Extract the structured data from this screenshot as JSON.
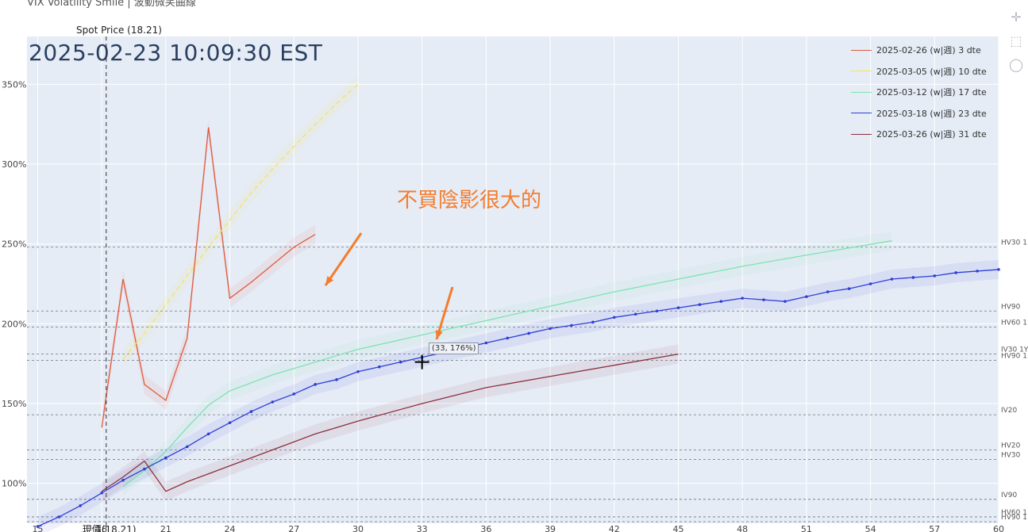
{
  "header": {
    "title": "VIX Volatility Smile | 波動微笑曲線"
  },
  "timestamp": "2025-02-23 10:09:30 EST",
  "spot": {
    "label": "Spot Price (18.21)",
    "bottom_label": "現價(18.21)",
    "value": 18.21
  },
  "annotation": {
    "text": "不買陰影很大的"
  },
  "tooltip": {
    "text": "(33, 176%)"
  },
  "modebar": {
    "icons": [
      "pan-icon",
      "box-select-icon",
      "comment-icon"
    ]
  },
  "colors": {
    "background": "#e5ecf6",
    "s1": "#e2583e",
    "s2": "#f8e35a",
    "s3": "#7ee2b0",
    "s4": "#2e3fd6",
    "s5": "#8b2f3c"
  },
  "chart_data": {
    "type": "line",
    "xlim": [
      14.5,
      60
    ],
    "ylim": [
      75,
      380
    ],
    "x_ticks": [
      15,
      18,
      21,
      24,
      27,
      30,
      33,
      36,
      39,
      42,
      45,
      48,
      51,
      54,
      57,
      60
    ],
    "x_tick_labels": [
      "15",
      "18",
      "21",
      "24",
      "27",
      "30",
      "33",
      "36",
      "39",
      "42",
      "45",
      "48",
      "51",
      "54",
      "57",
      "60"
    ],
    "y_ticks": [
      100,
      150,
      200,
      250,
      300,
      350
    ],
    "y_tick_labels": [
      "100%",
      "150%",
      "200%",
      "250%",
      "300%",
      "350%"
    ],
    "legend_position": "top-right",
    "series": [
      {
        "name": "2025-02-26 (w|週) 3 dte",
        "color": "#e2583e",
        "x": [
          18,
          19,
          20,
          21,
          22,
          23,
          24,
          25,
          26,
          27,
          28
        ],
        "y": [
          135,
          228,
          162,
          152,
          191,
          323,
          216,
          226,
          237,
          248,
          256
        ]
      },
      {
        "name": "2025-03-05 (w|週) 10 dte",
        "color": "#f8e35a",
        "x": [
          19,
          20,
          21,
          22,
          23,
          24,
          25,
          26,
          27,
          28,
          29,
          30
        ],
        "y": [
          178,
          194,
          212,
          230,
          248,
          265,
          282,
          297,
          311,
          325,
          338,
          350
        ]
      },
      {
        "name": "2025-03-12 (w|週) 17 dte",
        "color": "#7ee2b0",
        "x": [
          19,
          20,
          21,
          22,
          23,
          24,
          25,
          26,
          27,
          28,
          29,
          30,
          33,
          36,
          39,
          42,
          45,
          48,
          51,
          55
        ],
        "y": [
          98,
          108,
          120,
          135,
          149,
          158,
          163,
          168,
          172,
          176,
          180,
          184,
          193,
          202,
          211,
          220,
          228,
          236,
          243,
          252
        ]
      },
      {
        "name": "2025-03-18 (w|週) 23 dte",
        "color": "#2e3fd6",
        "x": [
          15,
          16,
          17,
          18,
          19,
          20,
          21,
          22,
          23,
          24,
          25,
          26,
          27,
          28,
          29,
          30,
          31,
          32,
          33,
          34,
          35,
          36,
          37,
          38,
          39,
          40,
          41,
          42,
          43,
          44,
          45,
          46,
          47,
          48,
          49,
          50,
          51,
          52,
          53,
          54,
          55,
          56,
          57,
          58,
          59,
          60
        ],
        "y": [
          73,
          79,
          86,
          94,
          102,
          109,
          116,
          123,
          131,
          138,
          145,
          151,
          156,
          162,
          165,
          170,
          173,
          176,
          179,
          182,
          185,
          188,
          191,
          194,
          197,
          199,
          201,
          204,
          206,
          208,
          210,
          212,
          214,
          216,
          215,
          214,
          217,
          220,
          222,
          225,
          228,
          229,
          230,
          232,
          233,
          234
        ]
      },
      {
        "name": "2025-03-26 (w|週) 31 dte",
        "color": "#8b2f3c",
        "x": [
          18,
          19,
          20,
          21,
          22,
          23,
          24,
          25,
          26,
          27,
          28,
          29,
          30,
          33,
          36,
          39,
          42,
          45
        ],
        "y": [
          95,
          104,
          114,
          95,
          101,
          106,
          111,
          116,
          121,
          126,
          131,
          135,
          139,
          150,
          160,
          167,
          174,
          181
        ]
      }
    ],
    "reference_lines": [
      {
        "label": "HV90",
        "y": 208
      },
      {
        "label": "HV60 1",
        "y": 198
      },
      {
        "label": "IV30 1Y",
        "y": 181
      },
      {
        "label": "HV90 1",
        "y": 177
      },
      {
        "label": "HV30 1",
        "y": 248
      },
      {
        "label": "IV20",
        "y": 143
      },
      {
        "label": "HV20",
        "y": 121
      },
      {
        "label": "HV30",
        "y": 115
      },
      {
        "label": "IV90",
        "y": 90
      },
      {
        "label": "HV60 1",
        "y": 79
      },
      {
        "label": "HV90 1",
        "y": 76
      }
    ]
  }
}
